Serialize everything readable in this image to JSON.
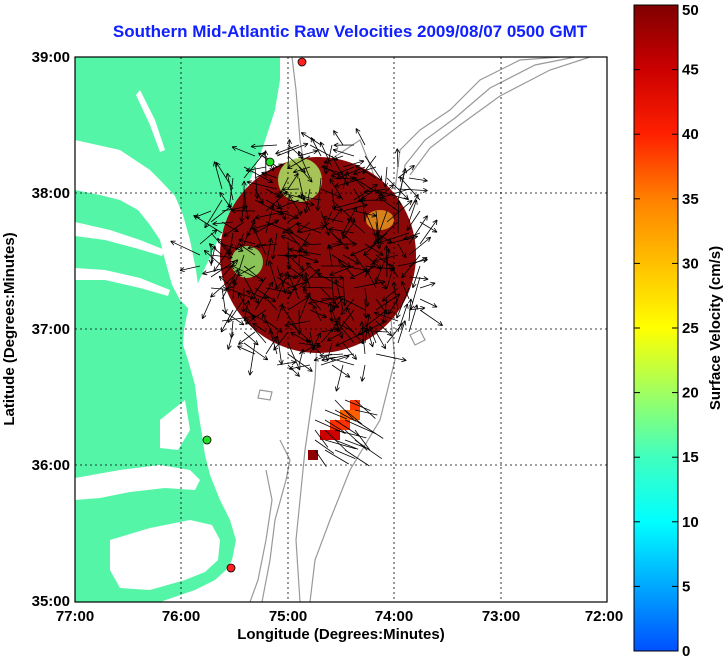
{
  "title": "Southern Mid-Atlantic Raw Velocities 2009/08/07 0500 GMT",
  "x_label": "Longitude (Degrees:Minutes)",
  "y_label": "Latitude (Degrees:Minutes)",
  "x_ticks": [
    "77:00",
    "76:00",
    "75:00",
    "74:00",
    "73:00",
    "72:00"
  ],
  "y_ticks": [
    "39:00",
    "38:00",
    "37:00",
    "36:00",
    "35:00"
  ],
  "colorbar": {
    "label": "Surface Velocity (cm/s)",
    "ticks": [
      "0",
      "5",
      "10",
      "15",
      "20",
      "25",
      "30",
      "35",
      "40",
      "45",
      "50"
    ],
    "min": 0,
    "max": 50
  },
  "colors": {
    "land": "#55f5a8",
    "water": "#ffffff",
    "title": "#1020ff",
    "bathymetry": "#999999",
    "station_red": "#ff2020",
    "station_green": "#22dd22"
  },
  "chart_data": {
    "type": "heatmap",
    "title": "Southern Mid-Atlantic Raw Velocities 2009/08/07 0500 GMT",
    "xlabel": "Longitude (Degrees:Minutes)",
    "ylabel": "Latitude (Degrees:Minutes)",
    "xlim": [
      -77,
      -72
    ],
    "ylim": [
      35,
      39
    ],
    "grid": true,
    "colorbar_label": "Surface Velocity (cm/s)",
    "colorbar_range": [
      0,
      50
    ],
    "stations": [
      {
        "lon": -75.1,
        "lat": 39.0,
        "color": "red"
      },
      {
        "lon": -75.15,
        "lat": 38.22,
        "color": "green"
      },
      {
        "lon": -75.75,
        "lat": 36.2,
        "color": "green"
      },
      {
        "lon": -75.5,
        "lat": 35.25,
        "color": "red"
      }
    ],
    "velocity_regions": [
      {
        "area": "main field",
        "lon_range": [
          -75.6,
          -74.1
        ],
        "lat_range": [
          36.8,
          38.3
        ],
        "speed_cm_s": "40-50"
      },
      {
        "area": "northwest corner",
        "lon": -74.95,
        "lat": 38.15,
        "speed_cm_s": 25
      },
      {
        "area": "west edge",
        "lon": -75.45,
        "lat": 37.55,
        "speed_cm_s": 20
      },
      {
        "area": "southern patch",
        "lon_range": [
          -74.8,
          -74.35
        ],
        "lat_range": [
          36.2,
          36.7
        ],
        "speed_cm_s": "35-48"
      }
    ]
  }
}
